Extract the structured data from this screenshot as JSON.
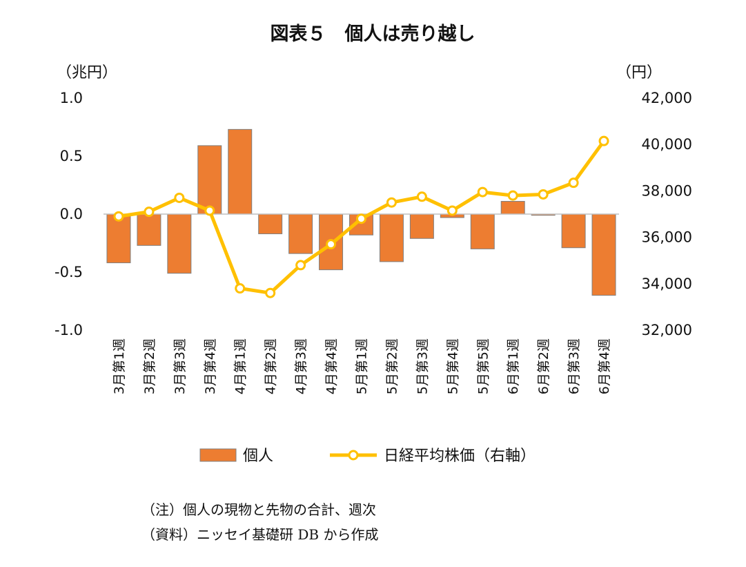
{
  "chart_data": {
    "type": "bar",
    "title": "図表５　個人は売り越し",
    "left_unit": "（兆円）",
    "right_unit": "（円）",
    "categories": [
      "3月第1週",
      "3月第2週",
      "3月第3週",
      "3月第4週",
      "4月第1週",
      "4月第2週",
      "4月第3週",
      "4月第4週",
      "5月第1週",
      "5月第2週",
      "5月第3週",
      "5月第4週",
      "5月第5週",
      "6月第1週",
      "6月第2週",
      "6月第3週",
      "6月第4週"
    ],
    "series": [
      {
        "name": "個人",
        "type": "bar",
        "axis": "left",
        "color": "#ED7D31",
        "values": [
          -0.42,
          -0.27,
          -0.51,
          0.59,
          0.73,
          -0.17,
          -0.34,
          -0.48,
          -0.18,
          -0.41,
          -0.21,
          -0.03,
          -0.3,
          0.11,
          -0.01,
          -0.29,
          -0.7
        ]
      },
      {
        "name": "日経平均株価（右軸）",
        "type": "line",
        "axis": "right",
        "color": "#FFC000",
        "values": [
          36900,
          37100,
          37700,
          37150,
          33800,
          33600,
          34800,
          35700,
          36800,
          37500,
          37750,
          37150,
          37950,
          37800,
          37850,
          38350,
          40150
        ]
      }
    ],
    "y_left": {
      "min": -1.0,
      "max": 1.0,
      "ticks": [
        "1.0",
        "0.5",
        "0.0",
        "-0.5",
        "-1.0"
      ]
    },
    "y_right": {
      "min": 32000,
      "max": 42000,
      "ticks": [
        "42,000",
        "40,000",
        "38,000",
        "36,000",
        "34,000",
        "32,000"
      ]
    },
    "grid": false,
    "legend_position": "bottom"
  },
  "notes": {
    "note1": "（注）個人の現物と先物の合計、週次",
    "note2": "（資料）ニッセイ基礎研 DB から作成"
  }
}
